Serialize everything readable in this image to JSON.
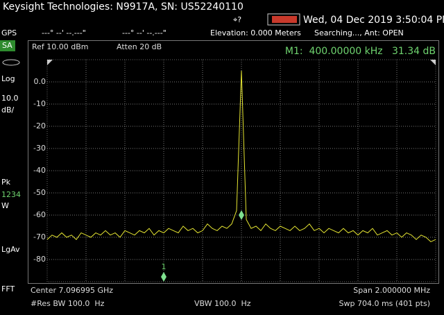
{
  "header": {
    "title": "Keysight Technologies: N9917A, SN: US52240110",
    "datetime": "Wed, 04 Dec 2019 3:50:04 PM"
  },
  "status": {
    "gps": "GPS",
    "lat": "---° --' --.---\"",
    "lon": "---° --' --.---\"",
    "elevation": "Elevation: 0.000 Meters",
    "antenna": "Searching..., Ant: OPEN"
  },
  "sidebar": {
    "mode": "SA",
    "scale": "Log",
    "div": "10.0",
    "div_unit": "dB/",
    "detector": "Pk",
    "traces": "1234",
    "trace_mode": "W",
    "average": "LgAv",
    "fft": "FFT"
  },
  "settings": {
    "ref": "Ref 10.00 dBm",
    "atten": "Atten 20 dB",
    "marker": "M1:  400.00000 kHz   31.34 dB"
  },
  "chart_data": {
    "type": "line",
    "color": "#e6e632",
    "grid": true,
    "marker_label": "1",
    "ylim": [
      -90,
      10
    ],
    "yticks": [
      {
        "value": 0,
        "label": "0.0"
      },
      -10,
      -20,
      -30,
      -40,
      -50,
      -60,
      -70,
      -80
    ],
    "values": [
      -71,
      -69,
      -70,
      -68,
      -70,
      -69,
      -71,
      -68,
      -69,
      -70,
      -68,
      -69,
      -67,
      -69,
      -68,
      -70,
      -67,
      -68,
      -69,
      -67,
      -68,
      -66,
      -69,
      -67,
      -68,
      -66,
      -67,
      -68,
      -65,
      -67,
      -66,
      -68,
      -67,
      -64,
      -66,
      -67,
      -65,
      -66,
      -64,
      -58,
      5,
      -62,
      -66,
      -65,
      -67,
      -64,
      -66,
      -67,
      -65,
      -66,
      -67,
      -65,
      -67,
      -66,
      -64,
      -67,
      -66,
      -68,
      -66,
      -67,
      -68,
      -66,
      -68,
      -67,
      -69,
      -67,
      -68,
      -66,
      -69,
      -68,
      -67,
      -69,
      -68,
      -70,
      -68,
      -69,
      -71,
      -69,
      -70,
      -72,
      -71
    ]
  },
  "footer": {
    "center": "Center 7.096995 GHz",
    "span": "Span 2.000000 MHz",
    "rbw": "#Res BW 100.0  Hz",
    "vbw": "VBW 100.0  Hz",
    "sweep": "Swp 704.0 ms (401 pts)"
  }
}
